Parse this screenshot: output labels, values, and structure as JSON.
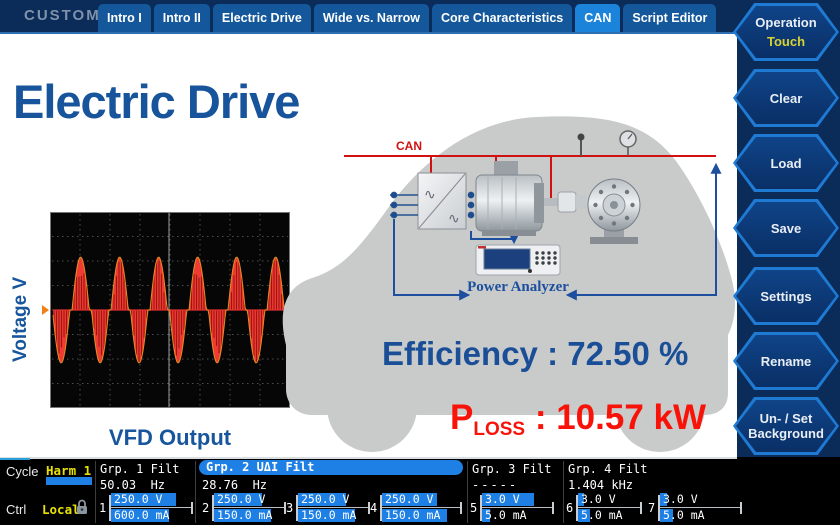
{
  "header": {
    "brand": "CUSTOM",
    "tabs": [
      {
        "label": "Intro I",
        "active": false
      },
      {
        "label": "Intro II",
        "active": false
      },
      {
        "label": "Electric Drive",
        "active": false
      },
      {
        "label": "Wide vs. Narrow",
        "active": false
      },
      {
        "label": "Core Characteristics",
        "active": false
      },
      {
        "label": "CAN",
        "active": true
      },
      {
        "label": "Script Editor",
        "active": false
      }
    ]
  },
  "sidebar": {
    "buttons": [
      {
        "label": "Operation",
        "sub": "Touch"
      },
      {
        "label": "Clear"
      },
      {
        "label": "Load"
      },
      {
        "label": "Save"
      },
      {
        "label": "Settings"
      },
      {
        "label": "Rename"
      },
      {
        "label": "Un- / Set Background"
      },
      {
        "label": ""
      }
    ]
  },
  "main": {
    "title": "Electric Drive",
    "scope_ylabel": "Voltage V",
    "scope_caption": "VFD Output",
    "efficiency_label": "Efficiency",
    "efficiency_sep": " : ",
    "efficiency_value": "72.50 %",
    "ploss_base": "P",
    "ploss_sub": "LOSS",
    "ploss_sep": " : ",
    "ploss_value": "10.57 kW",
    "diagram": {
      "bus_label": "CAN",
      "analyzer_label": "Power Analyzer"
    }
  },
  "statusbar": {
    "cycle_label": "Cycle",
    "cycle_value": "Harm 1",
    "ctrl_label": "Ctrl",
    "ctrl_value": "Local",
    "groups": [
      {
        "name": "Grp. 1 Filt",
        "freq": "50.03  Hz",
        "highlight": false
      },
      {
        "name": "Grp. 2 UΔI Filt",
        "freq": "28.76  Hz",
        "highlight": true
      },
      {
        "name": "Grp. 3 Filt",
        "freq": "-----",
        "highlight": false
      },
      {
        "name": "Grp. 4 Filt",
        "freq": "1.404 kHz",
        "highlight": false
      }
    ],
    "channels": [
      {
        "num": "1",
        "v": "250.0 V",
        "i": "600.0 mA",
        "v_fill": 0.82,
        "i_fill": 0.74
      },
      {
        "num": "2",
        "v": "250.0 V",
        "i": "150.0 mA",
        "v_fill": 0.7,
        "i_fill": 0.82
      },
      {
        "num": "3",
        "v": "250.0 V",
        "i": "150.0 mA",
        "v_fill": 0.7,
        "i_fill": 0.82
      },
      {
        "num": "4",
        "v": "250.0 V",
        "i": "150.0 mA",
        "v_fill": 0.72,
        "i_fill": 0.84
      },
      {
        "num": "5",
        "v": "3.0 V",
        "i": "5.0 mA",
        "v_fill": 0.76,
        "i_fill": 0.12
      },
      {
        "num": "6",
        "v": "3.0 V",
        "i": "5.0 mA",
        "v_fill": 0.1,
        "i_fill": 0.2
      },
      {
        "num": "7",
        "v": "3.0 V",
        "i": "5.0 mA",
        "v_fill": 0.09,
        "i_fill": 0.17
      }
    ]
  },
  "chart_data": {
    "type": "line",
    "title": "VFD Output",
    "ylabel": "Voltage V",
    "description": "Oscilloscope view of PWM-chopped sinusoidal VFD output voltage: red trace with orange envelope on black 8x8 dotted grid, zero-level marker at left",
    "cycles": 6,
    "phase": 3.4,
    "amplitude_fraction": 0.54,
    "grid_divisions": [
      8,
      8
    ],
    "trace_color": "#ef3b34",
    "envelope_color": "#e5901e"
  },
  "colors": {
    "accent_blue": "#1b83da",
    "title_blue": "#17549b",
    "alert_red": "#f81208",
    "bar_blue": "#1e80e4",
    "panel_navy": "#0b2b58",
    "status_yellow": "#e8e104"
  }
}
